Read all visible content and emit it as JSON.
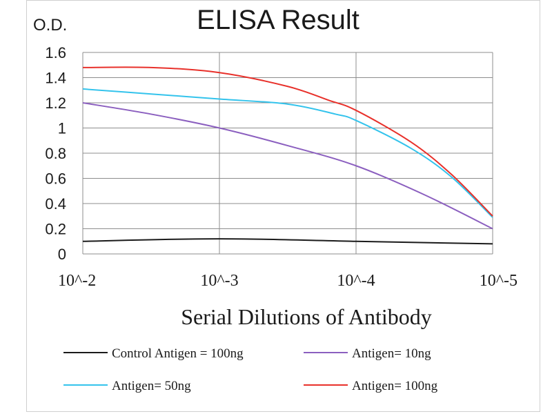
{
  "chart_data": {
    "type": "line",
    "title": "ELISA Result",
    "ylabel": "O.D.",
    "xlabel": "Serial Dilutions  of Antibody",
    "categories": [
      "10^-2",
      "10^-3",
      "10^-4",
      "10^-5"
    ],
    "y_ticks": [
      "0",
      "0.2",
      "0.4",
      "0.6",
      "0.8",
      "1",
      "1.2",
      "1.4",
      "1.6"
    ],
    "ylim": [
      0,
      1.6
    ],
    "grid": true,
    "legend_position": "bottom",
    "series": [
      {
        "name": "Control Antigen = 100ng",
        "color": "#1a1a1a",
        "points": [
          [
            0,
            0.1
          ],
          [
            1,
            0.12
          ],
          [
            2,
            0.1
          ],
          [
            3,
            0.08
          ]
        ]
      },
      {
        "name": "Antigen= 10ng",
        "color": "#8b5fbf",
        "points": [
          [
            0,
            1.2
          ],
          [
            0.5,
            1.11
          ],
          [
            1,
            1.0
          ],
          [
            1.5,
            0.86
          ],
          [
            2,
            0.7
          ],
          [
            2.5,
            0.47
          ],
          [
            3,
            0.2
          ]
        ]
      },
      {
        "name": "Antigen= 50ng",
        "color": "#33c3ec",
        "points": [
          [
            0,
            1.31
          ],
          [
            0.5,
            1.27
          ],
          [
            1,
            1.23
          ],
          [
            1.5,
            1.19
          ],
          [
            1.85,
            1.11
          ],
          [
            2,
            1.06
          ],
          [
            2.4,
            0.84
          ],
          [
            2.7,
            0.61
          ],
          [
            3,
            0.29
          ]
        ]
      },
      {
        "name": "Antigen= 100ng",
        "color": "#e8302a",
        "points": [
          [
            0,
            1.48
          ],
          [
            0.5,
            1.48
          ],
          [
            1,
            1.44
          ],
          [
            1.5,
            1.33
          ],
          [
            1.8,
            1.22
          ],
          [
            2,
            1.14
          ],
          [
            2.4,
            0.89
          ],
          [
            2.7,
            0.63
          ],
          [
            3,
            0.3
          ]
        ]
      }
    ]
  }
}
